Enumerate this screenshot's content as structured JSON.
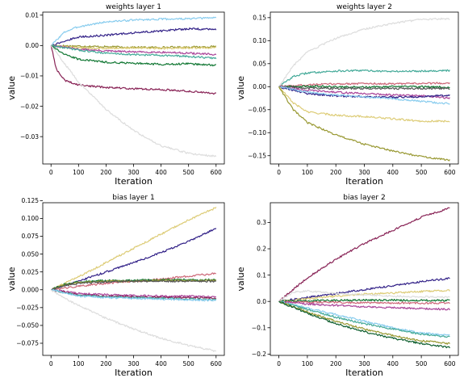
{
  "chart_data": [
    {
      "type": "line",
      "title": "weights layer 1",
      "xlabel": "Iteration",
      "ylabel": "value",
      "xlim": [
        -30,
        630
      ],
      "ylim": [
        -0.039,
        0.011
      ],
      "xticks": [
        0,
        100,
        200,
        300,
        400,
        500,
        600
      ],
      "yticks": [
        -0.03,
        -0.02,
        -0.01,
        0.0,
        0.01
      ],
      "ytick_labels": [
        "−0.03",
        "−0.02",
        "−0.01",
        "0.00",
        "0.01"
      ],
      "grid": false,
      "series": [
        {
          "color": "#88ccee",
          "x": [
            0,
            50,
            100,
            200,
            300,
            400,
            500,
            600
          ],
          "y": [
            0.0,
            0.0045,
            0.0062,
            0.0078,
            0.0084,
            0.0087,
            0.0088,
            0.0092
          ]
        },
        {
          "color": "#332288",
          "x": [
            0,
            50,
            100,
            200,
            300,
            400,
            500,
            600
          ],
          "y": [
            0.0,
            0.0015,
            0.0028,
            0.0034,
            0.0042,
            0.0048,
            0.0055,
            0.0053
          ]
        },
        {
          "color": "#999933",
          "x": [
            0,
            100,
            200,
            300,
            400,
            500,
            600
          ],
          "y": [
            0.0,
            -0.0002,
            -0.0004,
            -0.0006,
            -0.0006,
            -0.0005,
            -0.0004
          ]
        },
        {
          "color": "#ddcc77",
          "x": [
            0,
            100,
            200,
            300,
            400,
            500,
            600
          ],
          "y": [
            0.0,
            -0.0008,
            -0.0009,
            -0.0008,
            -0.0009,
            -0.0008,
            -0.0007
          ]
        },
        {
          "color": "#aa4499",
          "x": [
            0,
            100,
            200,
            300,
            400,
            500,
            600
          ],
          "y": [
            0.0,
            -0.0012,
            -0.0018,
            -0.0021,
            -0.0022,
            -0.0025,
            -0.003
          ]
        },
        {
          "color": "#44aa99",
          "x": [
            0,
            100,
            200,
            300,
            400,
            500,
            600
          ],
          "y": [
            0.0,
            -0.0015,
            -0.0025,
            -0.003,
            -0.0032,
            -0.0036,
            -0.0042
          ]
        },
        {
          "color": "#117733",
          "x": [
            0,
            50,
            100,
            200,
            300,
            400,
            500,
            600
          ],
          "y": [
            0.0,
            -0.003,
            -0.0045,
            -0.0055,
            -0.0058,
            -0.0062,
            -0.006,
            -0.0065
          ]
        },
        {
          "color": "#882255",
          "x": [
            0,
            20,
            50,
            100,
            200,
            300,
            400,
            500,
            600
          ],
          "y": [
            0.0,
            -0.008,
            -0.0115,
            -0.013,
            -0.0138,
            -0.0142,
            -0.0145,
            -0.015,
            -0.0158
          ]
        },
        {
          "color": "#dddddd",
          "x": [
            0,
            50,
            100,
            200,
            300,
            400,
            500,
            600
          ],
          "y": [
            0.0,
            -0.006,
            -0.012,
            -0.021,
            -0.028,
            -0.033,
            -0.0355,
            -0.0365
          ]
        }
      ]
    },
    {
      "type": "line",
      "title": "weights layer 2",
      "xlabel": "Iteration",
      "ylabel": "value",
      "xlim": [
        -30,
        630
      ],
      "ylim": [
        -0.168,
        0.162
      ],
      "xticks": [
        0,
        100,
        200,
        300,
        400,
        500,
        600
      ],
      "yticks": [
        -0.15,
        -0.1,
        -0.05,
        0.0,
        0.05,
        0.1,
        0.15
      ],
      "ytick_labels": [
        "−0.15",
        "−0.10",
        "−0.05",
        "0.00",
        "0.05",
        "0.10",
        "0.15"
      ],
      "grid": false,
      "series": [
        {
          "color": "#dddddd",
          "x": [
            0,
            50,
            100,
            200,
            300,
            400,
            500,
            600
          ],
          "y": [
            0.0,
            0.045,
            0.075,
            0.105,
            0.125,
            0.138,
            0.146,
            0.148
          ]
        },
        {
          "color": "#44aa99",
          "x": [
            0,
            50,
            100,
            200,
            300,
            400,
            500,
            600
          ],
          "y": [
            0.0,
            0.022,
            0.03,
            0.034,
            0.035,
            0.033,
            0.034,
            0.035
          ]
        },
        {
          "color": "#cc6677",
          "x": [
            0,
            100,
            200,
            300,
            400,
            500,
            600
          ],
          "y": [
            0.0,
            0.004,
            0.006,
            0.007,
            0.006,
            0.007,
            0.008
          ]
        },
        {
          "color": "#117733",
          "x": [
            0,
            100,
            200,
            300,
            400,
            500,
            600
          ],
          "y": [
            0.0,
            0.001,
            0.0,
            -0.001,
            0.0,
            0.0,
            -0.001
          ]
        },
        {
          "color": "#555555",
          "x": [
            0,
            100,
            200,
            300,
            400,
            500,
            600
          ],
          "y": [
            0.0,
            -0.003,
            -0.004,
            -0.004,
            -0.004,
            -0.004,
            -0.004
          ]
        },
        {
          "color": "#aa4499",
          "x": [
            0,
            100,
            200,
            300,
            400,
            500,
            600
          ],
          "y": [
            0.0,
            -0.008,
            -0.012,
            -0.015,
            -0.018,
            -0.02,
            -0.025
          ]
        },
        {
          "color": "#332288",
          "x": [
            0,
            100,
            200,
            300,
            400,
            500,
            600
          ],
          "y": [
            0.0,
            -0.015,
            -0.02,
            -0.022,
            -0.023,
            -0.022,
            -0.018
          ]
        },
        {
          "color": "#88ccee",
          "x": [
            0,
            100,
            200,
            300,
            400,
            500,
            600
          ],
          "y": [
            0.0,
            -0.012,
            -0.018,
            -0.022,
            -0.026,
            -0.032,
            -0.037
          ]
        },
        {
          "color": "#ddcc77",
          "x": [
            0,
            50,
            100,
            200,
            300,
            400,
            500,
            600
          ],
          "y": [
            0.0,
            -0.035,
            -0.055,
            -0.062,
            -0.065,
            -0.07,
            -0.075,
            -0.075
          ]
        },
        {
          "color": "#999933",
          "x": [
            0,
            50,
            100,
            200,
            300,
            400,
            500,
            600
          ],
          "y": [
            0.0,
            -0.05,
            -0.078,
            -0.105,
            -0.125,
            -0.14,
            -0.152,
            -0.16
          ]
        }
      ]
    },
    {
      "type": "line",
      "title": "bias layer 1",
      "xlabel": "Iteration",
      "ylabel": "value",
      "xlim": [
        -30,
        630
      ],
      "ylim": [
        -0.092,
        0.122
      ],
      "xticks": [
        0,
        100,
        200,
        300,
        400,
        500,
        600
      ],
      "yticks": [
        -0.075,
        -0.05,
        -0.025,
        0.0,
        0.025,
        0.05,
        0.075,
        0.1,
        0.125
      ],
      "ytick_labels": [
        "−0.075",
        "−0.050",
        "−0.025",
        "0.000",
        "0.025",
        "0.050",
        "0.075",
        "0.100",
        "0.125"
      ],
      "grid": false,
      "series": [
        {
          "color": "#ddcc77",
          "x": [
            0,
            100,
            200,
            300,
            400,
            500,
            600
          ],
          "y": [
            0.0,
            0.018,
            0.038,
            0.058,
            0.078,
            0.098,
            0.115
          ]
        },
        {
          "color": "#332288",
          "x": [
            0,
            100,
            200,
            300,
            400,
            500,
            600
          ],
          "y": [
            0.0,
            0.012,
            0.025,
            0.038,
            0.052,
            0.068,
            0.086
          ]
        },
        {
          "color": "#cc6677",
          "x": [
            0,
            100,
            200,
            300,
            400,
            500,
            600
          ],
          "y": [
            0.0,
            0.005,
            0.009,
            0.012,
            0.015,
            0.019,
            0.023
          ]
        },
        {
          "color": "#117733",
          "x": [
            0,
            50,
            100,
            200,
            300,
            400,
            500,
            600
          ],
          "y": [
            0.0,
            0.008,
            0.011,
            0.013,
            0.013,
            0.014,
            0.014,
            0.014
          ]
        },
        {
          "color": "#999933",
          "x": [
            0,
            50,
            100,
            200,
            300,
            400,
            500,
            600
          ],
          "y": [
            0.0,
            0.007,
            0.01,
            0.012,
            0.012,
            0.013,
            0.013,
            0.013
          ]
        },
        {
          "color": "#555555",
          "x": [
            0,
            50,
            100,
            200,
            300,
            400,
            500,
            600
          ],
          "y": [
            0.0,
            0.006,
            0.009,
            0.011,
            0.012,
            0.012,
            0.012,
            0.012
          ]
        },
        {
          "color": "#aa4499",
          "x": [
            0,
            100,
            200,
            300,
            400,
            500,
            600
          ],
          "y": [
            0.0,
            -0.005,
            -0.007,
            -0.008,
            -0.009,
            -0.009,
            -0.01
          ]
        },
        {
          "color": "#882255",
          "x": [
            0,
            100,
            200,
            300,
            400,
            500,
            600
          ],
          "y": [
            0.0,
            -0.007,
            -0.009,
            -0.01,
            -0.011,
            -0.011,
            -0.012
          ]
        },
        {
          "color": "#44aa99",
          "x": [
            0,
            100,
            200,
            300,
            400,
            500,
            600
          ],
          "y": [
            0.0,
            -0.008,
            -0.01,
            -0.011,
            -0.012,
            -0.013,
            -0.014
          ]
        },
        {
          "color": "#88ccee",
          "x": [
            0,
            100,
            200,
            300,
            400,
            500,
            600
          ],
          "y": [
            0.0,
            -0.009,
            -0.011,
            -0.012,
            -0.013,
            -0.014,
            -0.015
          ]
        },
        {
          "color": "#dddddd",
          "x": [
            0,
            50,
            100,
            200,
            300,
            400,
            500,
            600
          ],
          "y": [
            0.0,
            -0.012,
            -0.022,
            -0.04,
            -0.055,
            -0.068,
            -0.078,
            -0.086
          ]
        }
      ]
    },
    {
      "type": "line",
      "title": "bias layer 2",
      "xlabel": "Iteration",
      "ylabel": "value",
      "xlim": [
        -30,
        630
      ],
      "ylim": [
        -0.205,
        0.375
      ],
      "xticks": [
        0,
        100,
        200,
        300,
        400,
        500,
        600
      ],
      "yticks": [
        -0.2,
        -0.1,
        0.0,
        0.1,
        0.2,
        0.3
      ],
      "ytick_labels": [
        "−0.2",
        "−0.1",
        "0.0",
        "0.1",
        "0.2",
        "0.3"
      ],
      "grid": false,
      "series": [
        {
          "color": "#882255",
          "x": [
            0,
            50,
            100,
            200,
            300,
            400,
            500,
            600
          ],
          "y": [
            0.0,
            0.045,
            0.09,
            0.16,
            0.22,
            0.27,
            0.32,
            0.355
          ]
        },
        {
          "color": "#332288",
          "x": [
            0,
            100,
            200,
            300,
            400,
            500,
            600
          ],
          "y": [
            0.0,
            0.015,
            0.03,
            0.045,
            0.06,
            0.075,
            0.088
          ]
        },
        {
          "color": "#ddcc77",
          "x": [
            0,
            100,
            200,
            300,
            400,
            500,
            600
          ],
          "y": [
            0.0,
            0.01,
            0.02,
            0.028,
            0.032,
            0.038,
            0.042
          ]
        },
        {
          "color": "#dddddd",
          "x": [
            0,
            50,
            100,
            200,
            300,
            400,
            500,
            600
          ],
          "y": [
            0.0,
            0.035,
            0.04,
            0.03,
            0.025,
            0.02,
            0.018,
            0.015
          ]
        },
        {
          "color": "#117733",
          "x": [
            0,
            100,
            200,
            300,
            400,
            500,
            600
          ],
          "y": [
            0.0,
            0.003,
            0.004,
            0.005,
            0.005,
            0.004,
            0.004
          ]
        },
        {
          "color": "#cc6677",
          "x": [
            0,
            100,
            200,
            300,
            400,
            500,
            600
          ],
          "y": [
            0.0,
            -0.003,
            -0.004,
            -0.005,
            -0.006,
            -0.006,
            -0.007
          ]
        },
        {
          "color": "#aa4499",
          "x": [
            0,
            100,
            200,
            300,
            400,
            500,
            600
          ],
          "y": [
            0.0,
            -0.01,
            -0.015,
            -0.02,
            -0.024,
            -0.027,
            -0.03
          ]
        },
        {
          "color": "#88ccee",
          "x": [
            0,
            100,
            200,
            300,
            400,
            500,
            600
          ],
          "y": [
            0.0,
            -0.025,
            -0.05,
            -0.075,
            -0.1,
            -0.12,
            -0.13
          ]
        },
        {
          "color": "#44aa99",
          "x": [
            0,
            100,
            200,
            300,
            400,
            500,
            600
          ],
          "y": [
            0.0,
            -0.03,
            -0.06,
            -0.085,
            -0.105,
            -0.125,
            -0.135
          ]
        },
        {
          "color": "#999933",
          "x": [
            0,
            100,
            200,
            300,
            400,
            500,
            600
          ],
          "y": [
            0.0,
            -0.04,
            -0.075,
            -0.105,
            -0.13,
            -0.15,
            -0.16
          ]
        },
        {
          "color": "#0e5e2e",
          "x": [
            0,
            100,
            200,
            300,
            400,
            500,
            600
          ],
          "y": [
            0.0,
            -0.045,
            -0.085,
            -0.115,
            -0.14,
            -0.16,
            -0.175
          ]
        }
      ]
    }
  ]
}
